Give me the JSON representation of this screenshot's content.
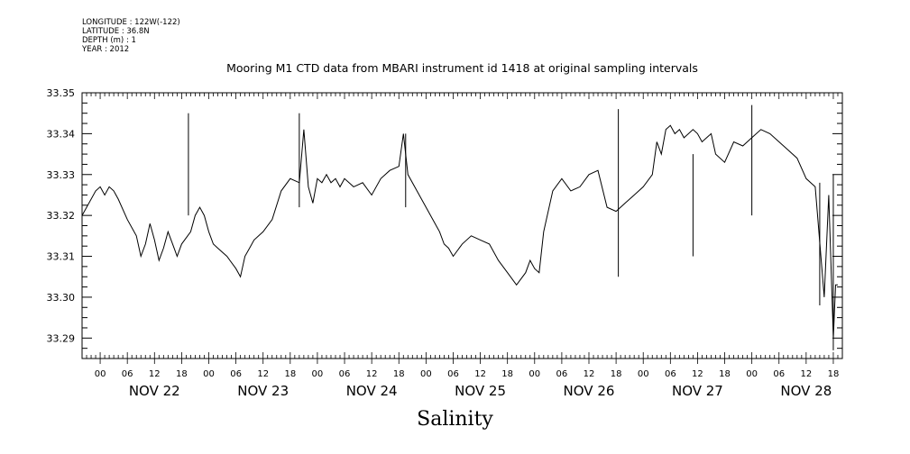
{
  "metadata": {
    "longitude": "LONGITUDE : 122W(-122)",
    "latitude": "LATITUDE : 36.8N",
    "depth": "DEPTH (m) : 1",
    "year": "YEAR : 2012"
  },
  "chart_data": {
    "type": "line",
    "title": "Mooring M1 CTD data from MBARI instrument id 1418 at original sampling intervals",
    "xlabel": "Salinity",
    "ylabel": "",
    "ylim": [
      33.285,
      33.35
    ],
    "xlim_hours": [
      -4,
      164
    ],
    "yticks": [
      "33.35",
      "33.34",
      "33.33",
      "33.32",
      "33.31",
      "33.30",
      "33.29"
    ],
    "hour_tick_labels": [
      "00",
      "06",
      "12",
      "18"
    ],
    "day_labels": [
      "NOV 22",
      "NOV 23",
      "NOV 24",
      "NOV 25",
      "NOV 26",
      "NOV 27",
      "NOV 28"
    ],
    "series": [
      {
        "x_hours": [
          -4,
          -1,
          0,
          1,
          2,
          3,
          4,
          6,
          8,
          9,
          10,
          11,
          12,
          13,
          14,
          15,
          16,
          17,
          18,
          20,
          21,
          22,
          23,
          24,
          25,
          26,
          28,
          30,
          31,
          32,
          33,
          34,
          36,
          38,
          40,
          42,
          44,
          45,
          46,
          47,
          48,
          49,
          50,
          51,
          52,
          53,
          54,
          56,
          58,
          60,
          62,
          64,
          66,
          67,
          68,
          70,
          72,
          74,
          75,
          76,
          77,
          78,
          80,
          82,
          84,
          86,
          88,
          90,
          92,
          94,
          95,
          96,
          97,
          98,
          100,
          102,
          104,
          106,
          108,
          110,
          112,
          114,
          116,
          118,
          120,
          122,
          123,
          124,
          125,
          126,
          127,
          128,
          129,
          130,
          131,
          132,
          133,
          134,
          135,
          136,
          138,
          140,
          142,
          144,
          146,
          148,
          150,
          152,
          154,
          156,
          158,
          160,
          161,
          162,
          162.5,
          163
        ],
        "values": [
          33.32,
          33.326,
          33.327,
          33.325,
          33.327,
          33.326,
          33.324,
          33.319,
          33.315,
          33.31,
          33.313,
          33.318,
          33.314,
          33.309,
          33.312,
          33.316,
          33.313,
          33.31,
          33.313,
          33.316,
          33.32,
          33.322,
          33.32,
          33.316,
          33.313,
          33.312,
          33.31,
          33.307,
          33.305,
          33.31,
          33.312,
          33.314,
          33.316,
          33.319,
          33.326,
          33.329,
          33.328,
          33.341,
          33.327,
          33.323,
          33.329,
          33.328,
          33.33,
          33.328,
          33.329,
          33.327,
          33.329,
          33.327,
          33.328,
          33.325,
          33.329,
          33.331,
          33.332,
          33.34,
          33.33,
          33.326,
          33.322,
          33.318,
          33.316,
          33.313,
          33.312,
          33.31,
          33.313,
          33.315,
          33.314,
          33.313,
          33.309,
          33.306,
          33.303,
          33.306,
          33.309,
          33.307,
          33.306,
          33.316,
          33.326,
          33.329,
          33.326,
          33.327,
          33.33,
          33.331,
          33.322,
          33.321,
          33.323,
          33.325,
          33.327,
          33.33,
          33.338,
          33.335,
          33.341,
          33.342,
          33.34,
          33.341,
          33.339,
          33.34,
          33.341,
          33.34,
          33.338,
          33.339,
          33.34,
          33.335,
          33.333,
          33.338,
          33.337,
          33.339,
          33.341,
          33.34,
          33.338,
          33.336,
          33.334,
          33.329,
          33.327,
          33.3,
          33.325,
          33.29,
          33.303,
          33.303
        ]
      }
    ],
    "spikes": [
      {
        "x_hours": 19.5,
        "low": 33.32,
        "high": 33.345
      },
      {
        "x_hours": 44.0,
        "low": 33.322,
        "high": 33.345
      },
      {
        "x_hours": 67.5,
        "low": 33.322,
        "high": 33.34
      },
      {
        "x_hours": 114.5,
        "low": 33.305,
        "high": 33.346
      },
      {
        "x_hours": 131.0,
        "low": 33.31,
        "high": 33.335
      },
      {
        "x_hours": 144.0,
        "low": 33.32,
        "high": 33.347
      },
      {
        "x_hours": 159.0,
        "low": 33.298,
        "high": 33.328
      },
      {
        "x_hours": 162.0,
        "low": 33.287,
        "high": 33.33
      }
    ]
  }
}
